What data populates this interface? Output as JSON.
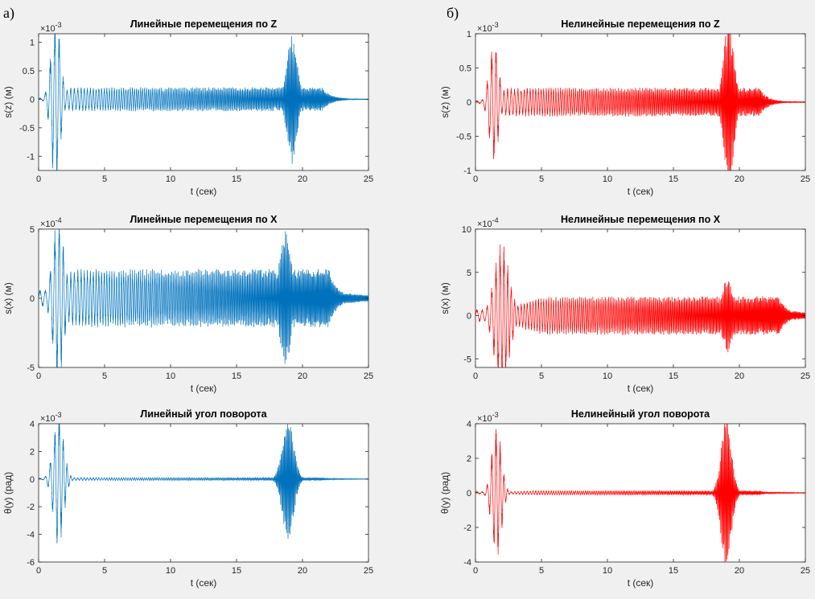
{
  "panel_labels": {
    "left": "а)",
    "right": "б)"
  },
  "colors": {
    "linear": "#0072bd",
    "nonlinear": "#ff0000",
    "axis": "#262626",
    "plot_bg": "#ffffff",
    "figure_bg": "#f0f0f0"
  },
  "chart_data": [
    {
      "type": "line",
      "id": "lin-z",
      "column": "left",
      "row": 0,
      "title": "Линейные перемещения по Z",
      "xlabel": "t (сек)",
      "ylabel": "s(z) (м)",
      "exponent_base": "×10",
      "exponent": "-3",
      "xlim": [
        0,
        25
      ],
      "ylim": [
        -1.25,
        1.15
      ],
      "xticks": [
        "0",
        "5",
        "10",
        "15",
        "20",
        "25"
      ],
      "yticks": [
        -1,
        -0.5,
        0,
        0.5,
        1
      ],
      "ytick_labels": [
        "-1",
        "-0.5",
        "0",
        "0.5",
        "1"
      ],
      "series_color": "linear",
      "envelope": {
        "steady_amp": 0.17,
        "burst1": {
          "center": 1.3,
          "peak": 1.22,
          "width": 0.5
        },
        "burst2": {
          "center": 19.2,
          "peak": 0.92,
          "width": 0.55
        },
        "ring1_decay_from": 2.4,
        "ring2_decay_to": 21.5,
        "tail_amp": 0.015
      }
    },
    {
      "type": "line",
      "id": "nonlin-z",
      "column": "right",
      "row": 0,
      "title": "Нелинейные перемещения по Z",
      "xlabel": "t (сек)",
      "ylabel": "s(z) (м)",
      "exponent_base": "×10",
      "exponent": "-3",
      "xlim": [
        0,
        25
      ],
      "ylim": [
        -1,
        1
      ],
      "xticks": [
        "0",
        "5",
        "10",
        "15",
        "20",
        "25"
      ],
      "yticks": [
        -1,
        -0.5,
        0,
        0.5,
        1
      ],
      "ytick_labels": [
        "-1",
        "-0.5",
        "0",
        "0.5",
        "1"
      ],
      "series_color": "nonlinear",
      "envelope": {
        "steady_amp": 0.17,
        "burst1": {
          "center": 1.4,
          "peak": 0.72,
          "width": 0.5
        },
        "burst2": {
          "center": 19.2,
          "peak": 0.98,
          "width": 0.55
        },
        "ring1_decay_from": 2.4,
        "ring2_decay_to": 21.5,
        "tail_amp": 0.015
      }
    },
    {
      "type": "line",
      "id": "lin-x",
      "column": "left",
      "row": 1,
      "title": "Линейные перемещения по X",
      "xlabel": "t (сек)",
      "ylabel": "s(x) (м)",
      "exponent_base": "×10",
      "exponent": "-4",
      "xlim": [
        0,
        25
      ],
      "ylim": [
        -5,
        5
      ],
      "xticks": [
        "0",
        "5",
        "10",
        "15",
        "20",
        "25"
      ],
      "yticks": [
        -5,
        0,
        5
      ],
      "ytick_labels": [
        "-5",
        "0",
        "5"
      ],
      "series_color": "linear",
      "envelope": {
        "steady_amp": 1.7,
        "burst1": {
          "center": 1.5,
          "peak": 4.9,
          "width": 0.6
        },
        "burst2": {
          "center": 18.7,
          "peak": 4.0,
          "width": 0.6
        },
        "ring1_decay_from": 2.6,
        "ring2_decay_to": 22.0,
        "tail_amp": 0.5
      }
    },
    {
      "type": "line",
      "id": "nonlin-x",
      "column": "right",
      "row": 1,
      "title": "Нелинейные перемещения по X",
      "xlabel": "t (сек)",
      "ylabel": "s(x) (м)",
      "exponent_base": "×10",
      "exponent": "-4",
      "xlim": [
        0,
        25
      ],
      "ylim": [
        -6,
        10
      ],
      "xticks": [
        "0",
        "5",
        "10",
        "15",
        "20",
        "25"
      ],
      "yticks": [
        -5,
        0,
        5,
        10
      ],
      "ytick_labels": [
        "-5",
        "0",
        "5",
        "10"
      ],
      "series_color": "nonlinear",
      "envelope": {
        "steady_amp": 1.8,
        "burst1": {
          "center": 2.0,
          "peak": 6.8,
          "width": 0.8
        },
        "burst2": {
          "center": 19.1,
          "peak": 3.5,
          "width": 0.6
        },
        "ring1_decay_from": 5.0,
        "ring2_decay_to": 23.0,
        "tail_amp": 0.6
      }
    },
    {
      "type": "line",
      "id": "lin-theta",
      "column": "left",
      "row": 2,
      "title": "Линейный угол поворота",
      "xlabel": "t (сек)",
      "ylabel": "θ(y) (рад)",
      "exponent_base": "×10",
      "exponent": "-3",
      "xlim": [
        0,
        25
      ],
      "ylim": [
        -6,
        4
      ],
      "xticks": [
        "0",
        "5",
        "10",
        "15",
        "20",
        "25"
      ],
      "yticks": [
        -6,
        -4,
        -2,
        0,
        2,
        4
      ],
      "ytick_labels": [
        "-6",
        "-4",
        "-2",
        "0",
        "2",
        "4"
      ],
      "series_color": "linear",
      "envelope": {
        "steady_amp": 0.08,
        "burst1": {
          "center": 1.5,
          "peak": 4.0,
          "width": 0.55
        },
        "burst2": {
          "center": 18.9,
          "peak": 3.7,
          "width": 0.6
        },
        "ring1_decay_from": 2.5,
        "ring2_decay_to": 21.5,
        "tail_amp": 0.05
      }
    },
    {
      "type": "line",
      "id": "nonlin-theta",
      "column": "right",
      "row": 2,
      "title": "Нелинейный угол поворота",
      "xlabel": "t (сек)",
      "ylabel": "θ(y) (рад)",
      "exponent_base": "×10",
      "exponent": "-3",
      "xlim": [
        0,
        25
      ],
      "ylim": [
        -4,
        4
      ],
      "xticks": [
        "0",
        "5",
        "10",
        "15",
        "20",
        "25"
      ],
      "yticks": [
        -4,
        -2,
        0,
        2,
        4
      ],
      "ytick_labels": [
        "-4",
        "-2",
        "0",
        "2",
        "4"
      ],
      "series_color": "nonlinear",
      "envelope": {
        "steady_amp": 0.1,
        "burst1": {
          "center": 1.6,
          "peak": 3.2,
          "width": 0.5
        },
        "burst2": {
          "center": 19.0,
          "peak": 3.5,
          "width": 0.55
        },
        "ring1_decay_from": 4.5,
        "ring2_decay_to": 21.5,
        "tail_amp": 0.05
      }
    }
  ]
}
